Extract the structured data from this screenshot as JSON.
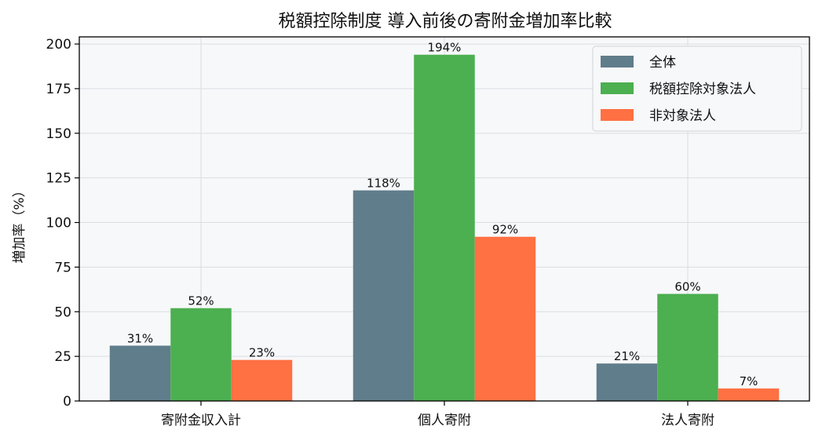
{
  "chart_data": {
    "type": "bar",
    "title": "税額控除制度 導入前後の寄附金増加率比較",
    "xlabel": "",
    "ylabel": "増加率（%）",
    "categories": [
      "寄附金収入計",
      "個人寄附",
      "法人寄附"
    ],
    "series": [
      {
        "name": "全体",
        "color": "#607d8b",
        "values": [
          31,
          118,
          21
        ]
      },
      {
        "name": "税額控除対象法人",
        "color": "#4caf50",
        "values": [
          52,
          194,
          60
        ]
      },
      {
        "name": "非対象法人",
        "color": "#ff7043",
        "values": [
          23,
          92,
          7
        ]
      }
    ],
    "value_suffix": "%",
    "ylim": [
      0,
      204
    ],
    "yticks": [
      0,
      25,
      50,
      75,
      100,
      125,
      150,
      175,
      200
    ],
    "grid": true,
    "legend_position": "top-right"
  }
}
